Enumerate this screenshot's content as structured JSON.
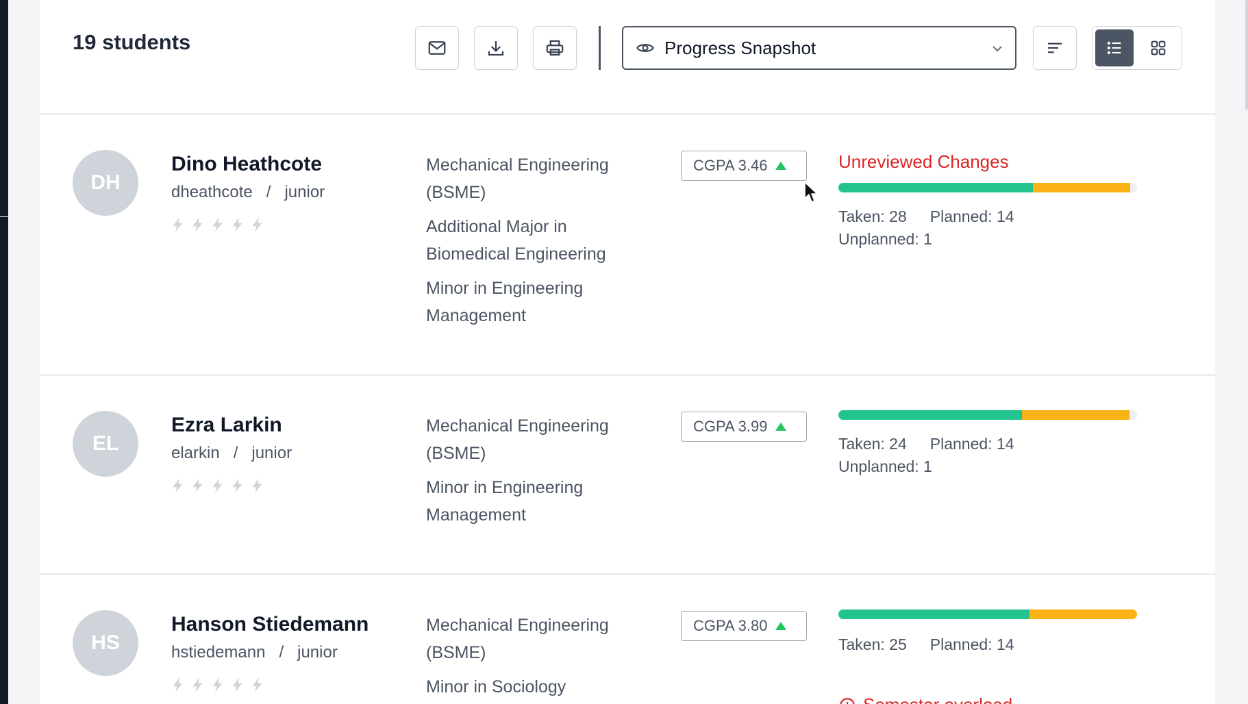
{
  "header": {
    "count_label": "19 students",
    "view_select": {
      "icon": "eye-icon",
      "selected": "Progress Snapshot"
    },
    "actions": [
      "mail-icon",
      "download-icon",
      "print-icon"
    ],
    "sort_icon": "sort-icon",
    "view_toggle": {
      "active": "list",
      "options": [
        "list",
        "grid"
      ]
    }
  },
  "colors": {
    "taken": "#22c38e",
    "planned": "#fbb214",
    "alert": "#dc2626",
    "avatar_bg": "#cfd3da",
    "cgpa_up": "#22c55e"
  },
  "students": [
    {
      "initials": "DH",
      "name": "Dino Heathcote",
      "username": "dheathcote",
      "slash": "/",
      "year": "junior",
      "rating": 0,
      "programs": [
        "Mechanical Engineering (BSME)",
        "Additional Major in Biomedical Engineering",
        "Minor in Engineering Management"
      ],
      "cgpa": "CGPA 3.46",
      "alert": "Unreviewed Changes",
      "taken_label": "Taken: 28",
      "planned_label": "Planned: 14",
      "unplanned_label": "Unplanned: 1",
      "taken": 28,
      "planned": 14,
      "unplanned": 1
    },
    {
      "initials": "EL",
      "name": "Ezra Larkin",
      "username": "elarkin",
      "slash": "/",
      "year": "junior",
      "rating": 0,
      "programs": [
        "Mechanical Engineering (BSME)",
        "Minor in Engineering Management"
      ],
      "cgpa": "CGPA 3.99",
      "alert": "",
      "taken_label": "Taken: 24",
      "planned_label": "Planned: 14",
      "unplanned_label": "Unplanned: 1",
      "taken": 24,
      "planned": 14,
      "unplanned": 1
    },
    {
      "initials": "HS",
      "name": "Hanson Stiedemann",
      "username": "hstiedemann",
      "slash": "/",
      "year": "junior",
      "rating": 0,
      "programs": [
        "Mechanical Engineering (BSME)",
        "Minor in Sociology"
      ],
      "cgpa": "CGPA 3.80",
      "alert": "Semester overload",
      "taken_label": "Taken: 25",
      "planned_label": "Planned: 14",
      "unplanned_label": "",
      "taken": 25,
      "planned": 14,
      "unplanned": 0
    }
  ]
}
